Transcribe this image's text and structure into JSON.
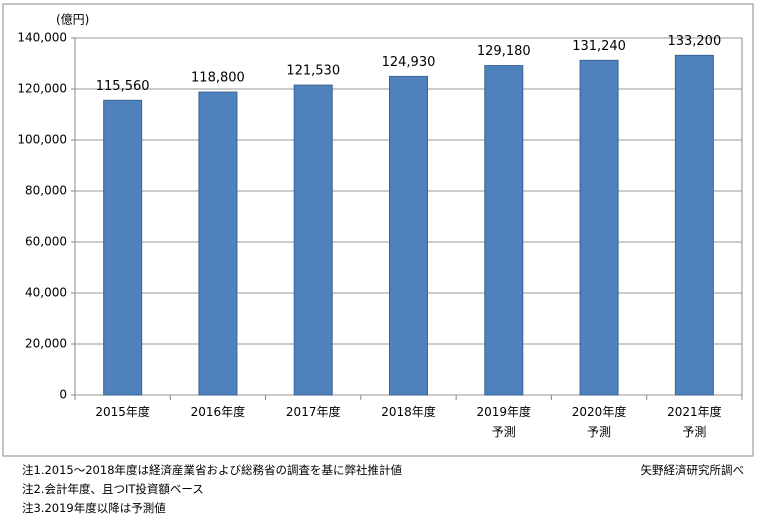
{
  "chart_data": {
    "type": "bar",
    "unit_label": "(億円)",
    "categories": [
      "2015年度",
      "2016年度",
      "2017年度",
      "2018年度",
      "2019年度\n予測",
      "2020年度\n予測",
      "2021年度\n予測"
    ],
    "values": [
      115560,
      118800,
      121530,
      124930,
      129180,
      131240,
      133200
    ],
    "value_labels": [
      "115,560",
      "118,800",
      "121,530",
      "124,930",
      "129,180",
      "131,240",
      "133,200"
    ],
    "color": "#4f81bd",
    "ylim": [
      0,
      140000
    ],
    "yticks": [
      0,
      {
        "value": 20000,
        "label": "20,000"
      },
      {
        "value": 40000,
        "label": "40,000"
      },
      {
        "value": 60000,
        "label": "60,000"
      },
      {
        "value": 80000,
        "label": "80,000"
      },
      {
        "value": 100000,
        "label": "100,000"
      },
      {
        "value": 120000,
        "label": "120,000"
      },
      {
        "value": 140000,
        "label": "140,000"
      }
    ],
    "grid": true,
    "notes": [
      "注1.2015～2018年度は経済産業省および総務省の調査を基に弊社推計値",
      "注2.会計年度、且つIT投資額ベース",
      "注3.2019年度以降は予測値"
    ],
    "source": "矢野経済研究所調べ"
  }
}
